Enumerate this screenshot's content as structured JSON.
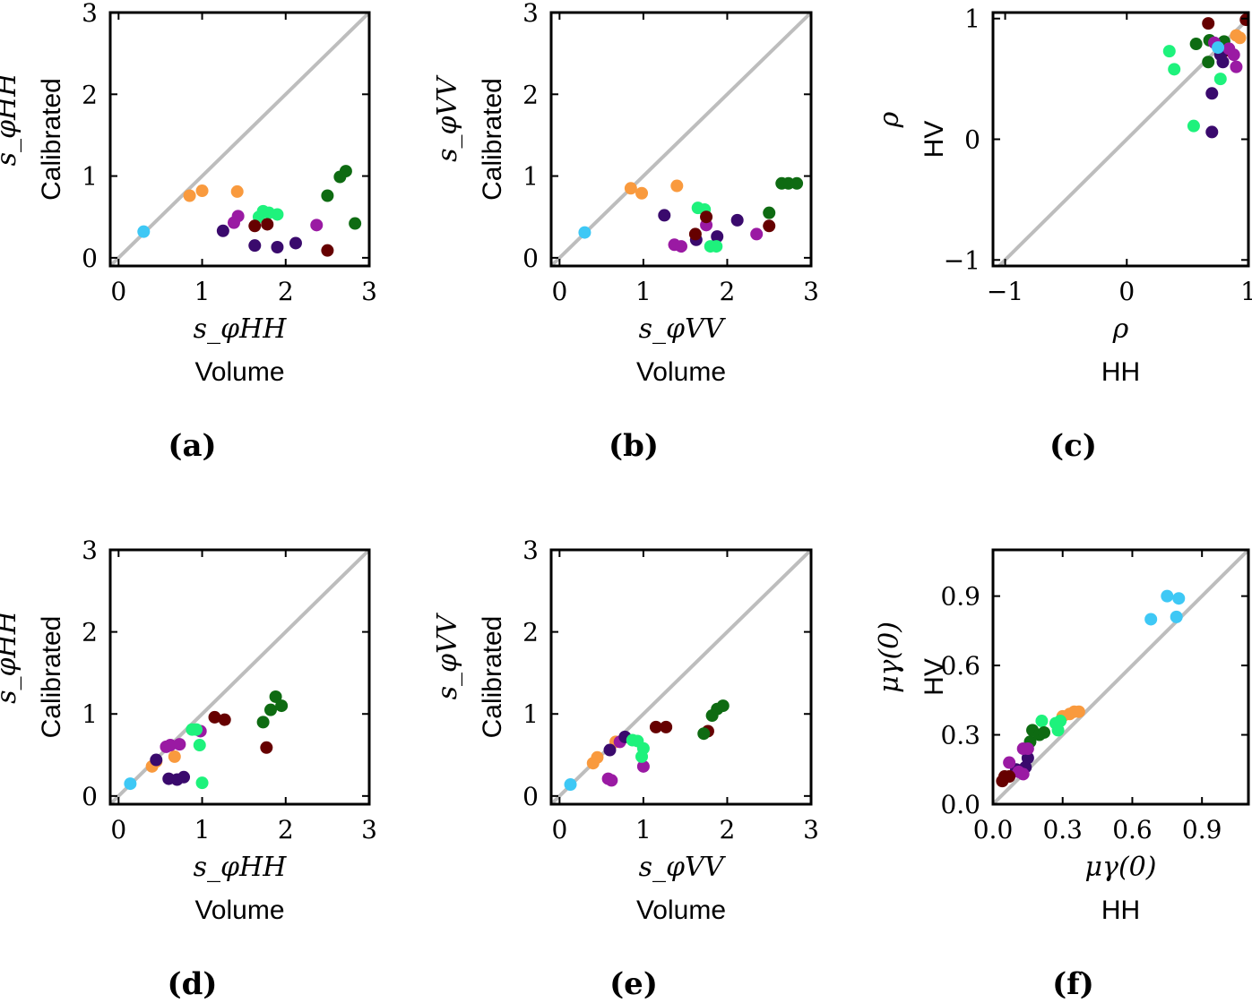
{
  "colors": {
    "c1": "#3ec8f5",
    "c2": "#f99a3e",
    "c3": "#9a1aa3",
    "c4": "#3a0a6d",
    "c5": "#1ef27c",
    "c6": "#660000",
    "c7": "#0e6b12",
    "diagonal": "#bdbdbd"
  },
  "chart_data": [
    {
      "id": "a",
      "panel_label": "(a)",
      "type": "scatter",
      "xlabel_top": "s_φHH",
      "xlabel_bottom": "Volume",
      "ylabel_top": "s_φHH",
      "ylabel_bottom": "Calibrated",
      "xlim": [
        -0.1,
        3.0
      ],
      "ylim": [
        -0.1,
        3.0
      ],
      "xticks": [
        0,
        1,
        2,
        3
      ],
      "yticks": [
        0,
        1,
        2,
        3
      ],
      "xtick_labels": [
        "0",
        "1",
        "2",
        "3"
      ],
      "ytick_labels": [
        "0",
        "1",
        "2",
        "3"
      ],
      "diagonal": true,
      "points": [
        {
          "x": 0.3,
          "y": 0.32,
          "c": "c1"
        },
        {
          "x": 0.85,
          "y": 0.76,
          "c": "c2"
        },
        {
          "x": 1.0,
          "y": 0.82,
          "c": "c2"
        },
        {
          "x": 1.42,
          "y": 0.81,
          "c": "c2"
        },
        {
          "x": 1.38,
          "y": 0.43,
          "c": "c3"
        },
        {
          "x": 1.43,
          "y": 0.51,
          "c": "c3"
        },
        {
          "x": 2.37,
          "y": 0.4,
          "c": "c3"
        },
        {
          "x": 1.25,
          "y": 0.33,
          "c": "c4"
        },
        {
          "x": 1.63,
          "y": 0.15,
          "c": "c4"
        },
        {
          "x": 1.9,
          "y": 0.13,
          "c": "c4"
        },
        {
          "x": 2.12,
          "y": 0.18,
          "c": "c4"
        },
        {
          "x": 1.68,
          "y": 0.5,
          "c": "c5"
        },
        {
          "x": 1.73,
          "y": 0.57,
          "c": "c5"
        },
        {
          "x": 1.8,
          "y": 0.55,
          "c": "c5"
        },
        {
          "x": 1.9,
          "y": 0.53,
          "c": "c5"
        },
        {
          "x": 1.63,
          "y": 0.39,
          "c": "c6"
        },
        {
          "x": 1.78,
          "y": 0.41,
          "c": "c6"
        },
        {
          "x": 2.5,
          "y": 0.09,
          "c": "c6"
        },
        {
          "x": 2.5,
          "y": 0.76,
          "c": "c7"
        },
        {
          "x": 2.65,
          "y": 0.99,
          "c": "c7"
        },
        {
          "x": 2.72,
          "y": 1.06,
          "c": "c7"
        },
        {
          "x": 2.83,
          "y": 0.42,
          "c": "c7"
        }
      ]
    },
    {
      "id": "b",
      "panel_label": "(b)",
      "type": "scatter",
      "xlabel_top": "s_φVV",
      "xlabel_bottom": "Volume",
      "ylabel_top": "s_φVV",
      "ylabel_bottom": "Calibrated",
      "xlim": [
        -0.1,
        3.0
      ],
      "ylim": [
        -0.1,
        3.0
      ],
      "xticks": [
        0,
        1,
        2,
        3
      ],
      "yticks": [
        0,
        1,
        2,
        3
      ],
      "xtick_labels": [
        "0",
        "1",
        "2",
        "3"
      ],
      "ytick_labels": [
        "0",
        "1",
        "2",
        "3"
      ],
      "diagonal": true,
      "points": [
        {
          "x": 0.3,
          "y": 0.31,
          "c": "c1"
        },
        {
          "x": 0.85,
          "y": 0.85,
          "c": "c2"
        },
        {
          "x": 0.98,
          "y": 0.79,
          "c": "c2"
        },
        {
          "x": 1.4,
          "y": 0.88,
          "c": "c2"
        },
        {
          "x": 1.37,
          "y": 0.16,
          "c": "c3"
        },
        {
          "x": 1.45,
          "y": 0.14,
          "c": "c3"
        },
        {
          "x": 1.75,
          "y": 0.4,
          "c": "c3"
        },
        {
          "x": 2.35,
          "y": 0.29,
          "c": "c3"
        },
        {
          "x": 1.25,
          "y": 0.52,
          "c": "c4"
        },
        {
          "x": 1.63,
          "y": 0.22,
          "c": "c4"
        },
        {
          "x": 1.88,
          "y": 0.26,
          "c": "c4"
        },
        {
          "x": 2.12,
          "y": 0.46,
          "c": "c4"
        },
        {
          "x": 1.65,
          "y": 0.61,
          "c": "c5"
        },
        {
          "x": 1.73,
          "y": 0.59,
          "c": "c5"
        },
        {
          "x": 1.8,
          "y": 0.14,
          "c": "c5"
        },
        {
          "x": 1.87,
          "y": 0.14,
          "c": "c5"
        },
        {
          "x": 1.62,
          "y": 0.29,
          "c": "c6"
        },
        {
          "x": 1.75,
          "y": 0.5,
          "c": "c6"
        },
        {
          "x": 2.5,
          "y": 0.39,
          "c": "c6"
        },
        {
          "x": 2.5,
          "y": 0.55,
          "c": "c7"
        },
        {
          "x": 2.65,
          "y": 0.91,
          "c": "c7"
        },
        {
          "x": 2.73,
          "y": 0.91,
          "c": "c7"
        },
        {
          "x": 2.83,
          "y": 0.91,
          "c": "c7"
        }
      ]
    },
    {
      "id": "c",
      "panel_label": "(c)",
      "type": "scatter",
      "xlabel_top": "ρ",
      "xlabel_bottom": "HH",
      "ylabel_top": "ρ",
      "ylabel_bottom": "HV",
      "xlim": [
        -1.1,
        1.0
      ],
      "ylim": [
        -1.05,
        1.05
      ],
      "xticks": [
        -1,
        0,
        1
      ],
      "yticks": [
        -1,
        0,
        1
      ],
      "xtick_labels": [
        "−1",
        "0",
        "1"
      ],
      "ytick_labels": [
        "−1",
        "0",
        "1"
      ],
      "diagonal": true,
      "points": [
        {
          "x": 0.35,
          "y": 0.73,
          "c": "c5"
        },
        {
          "x": 0.39,
          "y": 0.58,
          "c": "c5"
        },
        {
          "x": 0.55,
          "y": 0.11,
          "c": "c5"
        },
        {
          "x": 0.77,
          "y": 0.5,
          "c": "c5"
        },
        {
          "x": 0.57,
          "y": 0.79,
          "c": "c7"
        },
        {
          "x": 0.67,
          "y": 0.64,
          "c": "c7"
        },
        {
          "x": 0.68,
          "y": 0.82,
          "c": "c7"
        },
        {
          "x": 0.8,
          "y": 0.81,
          "c": "c7"
        },
        {
          "x": 0.67,
          "y": 0.96,
          "c": "c6"
        },
        {
          "x": 0.98,
          "y": 0.99,
          "c": "c6"
        },
        {
          "x": 0.8,
          "y": 0.73,
          "c": "c6"
        },
        {
          "x": 0.7,
          "y": 0.06,
          "c": "c4"
        },
        {
          "x": 0.7,
          "y": 0.38,
          "c": "c4"
        },
        {
          "x": 0.77,
          "y": 0.7,
          "c": "c4"
        },
        {
          "x": 0.79,
          "y": 0.64,
          "c": "c4"
        },
        {
          "x": 0.72,
          "y": 0.8,
          "c": "c3"
        },
        {
          "x": 0.84,
          "y": 0.75,
          "c": "c3"
        },
        {
          "x": 0.88,
          "y": 0.7,
          "c": "c3"
        },
        {
          "x": 0.9,
          "y": 0.6,
          "c": "c3"
        },
        {
          "x": 0.9,
          "y": 0.86,
          "c": "c2"
        },
        {
          "x": 0.93,
          "y": 0.84,
          "c": "c2"
        },
        {
          "x": 0.75,
          "y": 0.76,
          "c": "c1"
        }
      ]
    },
    {
      "id": "d",
      "panel_label": "(d)",
      "type": "scatter",
      "xlabel_top": "s_φHH",
      "xlabel_bottom": "Volume",
      "ylabel_top": "s_φHH",
      "ylabel_bottom": "Calibrated",
      "xlim": [
        -0.1,
        3.0
      ],
      "ylim": [
        -0.1,
        3.0
      ],
      "xticks": [
        0,
        1,
        2,
        3
      ],
      "yticks": [
        0,
        1,
        2,
        3
      ],
      "xtick_labels": [
        "0",
        "1",
        "2",
        "3"
      ],
      "ytick_labels": [
        "0",
        "1",
        "2",
        "3"
      ],
      "diagonal": true,
      "points": [
        {
          "x": 0.14,
          "y": 0.15,
          "c": "c1"
        },
        {
          "x": 0.4,
          "y": 0.36,
          "c": "c2"
        },
        {
          "x": 0.45,
          "y": 0.42,
          "c": "c2"
        },
        {
          "x": 0.67,
          "y": 0.48,
          "c": "c2"
        },
        {
          "x": 0.57,
          "y": 0.6,
          "c": "c3"
        },
        {
          "x": 0.62,
          "y": 0.62,
          "c": "c3"
        },
        {
          "x": 0.73,
          "y": 0.63,
          "c": "c3"
        },
        {
          "x": 0.98,
          "y": 0.79,
          "c": "c3"
        },
        {
          "x": 0.45,
          "y": 0.44,
          "c": "c4"
        },
        {
          "x": 0.6,
          "y": 0.21,
          "c": "c4"
        },
        {
          "x": 0.7,
          "y": 0.2,
          "c": "c4"
        },
        {
          "x": 0.78,
          "y": 0.23,
          "c": "c4"
        },
        {
          "x": 0.88,
          "y": 0.81,
          "c": "c5"
        },
        {
          "x": 0.93,
          "y": 0.81,
          "c": "c5"
        },
        {
          "x": 0.97,
          "y": 0.62,
          "c": "c5"
        },
        {
          "x": 1.0,
          "y": 0.16,
          "c": "c5"
        },
        {
          "x": 1.15,
          "y": 0.96,
          "c": "c6"
        },
        {
          "x": 1.27,
          "y": 0.93,
          "c": "c6"
        },
        {
          "x": 1.77,
          "y": 0.59,
          "c": "c6"
        },
        {
          "x": 1.73,
          "y": 0.9,
          "c": "c7"
        },
        {
          "x": 1.82,
          "y": 1.05,
          "c": "c7"
        },
        {
          "x": 1.88,
          "y": 1.21,
          "c": "c7"
        },
        {
          "x": 1.95,
          "y": 1.1,
          "c": "c7"
        }
      ]
    },
    {
      "id": "e",
      "panel_label": "(e)",
      "type": "scatter",
      "xlabel_top": "s_φVV",
      "xlabel_bottom": "Volume",
      "ylabel_top": "s_φVV",
      "ylabel_bottom": "Calibrated",
      "xlim": [
        -0.1,
        3.0
      ],
      "ylim": [
        -0.1,
        3.0
      ],
      "xticks": [
        0,
        1,
        2,
        3
      ],
      "yticks": [
        0,
        1,
        2,
        3
      ],
      "xtick_labels": [
        "0",
        "1",
        "2",
        "3"
      ],
      "ytick_labels": [
        "0",
        "1",
        "2",
        "3"
      ],
      "diagonal": true,
      "points": [
        {
          "x": 0.13,
          "y": 0.14,
          "c": "c1"
        },
        {
          "x": 0.4,
          "y": 0.4,
          "c": "c2"
        },
        {
          "x": 0.45,
          "y": 0.47,
          "c": "c2"
        },
        {
          "x": 0.67,
          "y": 0.66,
          "c": "c2"
        },
        {
          "x": 0.58,
          "y": 0.21,
          "c": "c3"
        },
        {
          "x": 0.62,
          "y": 0.19,
          "c": "c3"
        },
        {
          "x": 0.72,
          "y": 0.66,
          "c": "c3"
        },
        {
          "x": 1.0,
          "y": 0.36,
          "c": "c3"
        },
        {
          "x": 0.6,
          "y": 0.56,
          "c": "c4"
        },
        {
          "x": 0.78,
          "y": 0.72,
          "c": "c4"
        },
        {
          "x": 0.87,
          "y": 0.68,
          "c": "c5"
        },
        {
          "x": 0.93,
          "y": 0.67,
          "c": "c5"
        },
        {
          "x": 0.98,
          "y": 0.48,
          "c": "c5"
        },
        {
          "x": 1.0,
          "y": 0.58,
          "c": "c5"
        },
        {
          "x": 1.15,
          "y": 0.84,
          "c": "c6"
        },
        {
          "x": 1.27,
          "y": 0.84,
          "c": "c6"
        },
        {
          "x": 1.77,
          "y": 0.79,
          "c": "c6"
        },
        {
          "x": 1.72,
          "y": 0.76,
          "c": "c7"
        },
        {
          "x": 1.82,
          "y": 0.98,
          "c": "c7"
        },
        {
          "x": 1.88,
          "y": 1.06,
          "c": "c7"
        },
        {
          "x": 1.95,
          "y": 1.1,
          "c": "c7"
        }
      ]
    },
    {
      "id": "f",
      "panel_label": "(f)",
      "type": "scatter",
      "xlabel_top": "μγ(0)",
      "xlabel_bottom": "HH",
      "ylabel_top": "μγ(0)",
      "ylabel_bottom": "HV",
      "xlim": [
        0.0,
        1.1
      ],
      "ylim": [
        0.0,
        1.1
      ],
      "xticks": [
        0.0,
        0.3,
        0.6,
        0.9
      ],
      "yticks": [
        0.0,
        0.3,
        0.6,
        0.9
      ],
      "xtick_labels": [
        "0.0",
        "0.3",
        "0.6",
        "0.9"
      ],
      "ytick_labels": [
        "0.0",
        "0.3",
        "0.6",
        "0.9"
      ],
      "diagonal": true,
      "points": [
        {
          "x": 0.68,
          "y": 0.8,
          "c": "c1"
        },
        {
          "x": 0.75,
          "y": 0.9,
          "c": "c1"
        },
        {
          "x": 0.79,
          "y": 0.81,
          "c": "c1"
        },
        {
          "x": 0.8,
          "y": 0.89,
          "c": "c1"
        },
        {
          "x": 0.3,
          "y": 0.38,
          "c": "c2"
        },
        {
          "x": 0.33,
          "y": 0.39,
          "c": "c2"
        },
        {
          "x": 0.35,
          "y": 0.4,
          "c": "c2"
        },
        {
          "x": 0.37,
          "y": 0.4,
          "c": "c2"
        },
        {
          "x": 0.21,
          "y": 0.36,
          "c": "c5"
        },
        {
          "x": 0.27,
          "y": 0.35,
          "c": "c5"
        },
        {
          "x": 0.28,
          "y": 0.32,
          "c": "c5"
        },
        {
          "x": 0.29,
          "y": 0.36,
          "c": "c5"
        },
        {
          "x": 0.16,
          "y": 0.27,
          "c": "c7"
        },
        {
          "x": 0.17,
          "y": 0.32,
          "c": "c7"
        },
        {
          "x": 0.2,
          "y": 0.3,
          "c": "c7"
        },
        {
          "x": 0.22,
          "y": 0.31,
          "c": "c7"
        },
        {
          "x": 0.14,
          "y": 0.16,
          "c": "c4"
        },
        {
          "x": 0.15,
          "y": 0.2,
          "c": "c4"
        },
        {
          "x": 0.1,
          "y": 0.15,
          "c": "c4"
        },
        {
          "x": 0.07,
          "y": 0.18,
          "c": "c3"
        },
        {
          "x": 0.11,
          "y": 0.14,
          "c": "c3"
        },
        {
          "x": 0.13,
          "y": 0.13,
          "c": "c3"
        },
        {
          "x": 0.13,
          "y": 0.24,
          "c": "c3"
        },
        {
          "x": 0.15,
          "y": 0.24,
          "c": "c3"
        },
        {
          "x": 0.04,
          "y": 0.1,
          "c": "c6"
        },
        {
          "x": 0.05,
          "y": 0.12,
          "c": "c6"
        },
        {
          "x": 0.07,
          "y": 0.12,
          "c": "c6"
        }
      ]
    }
  ]
}
